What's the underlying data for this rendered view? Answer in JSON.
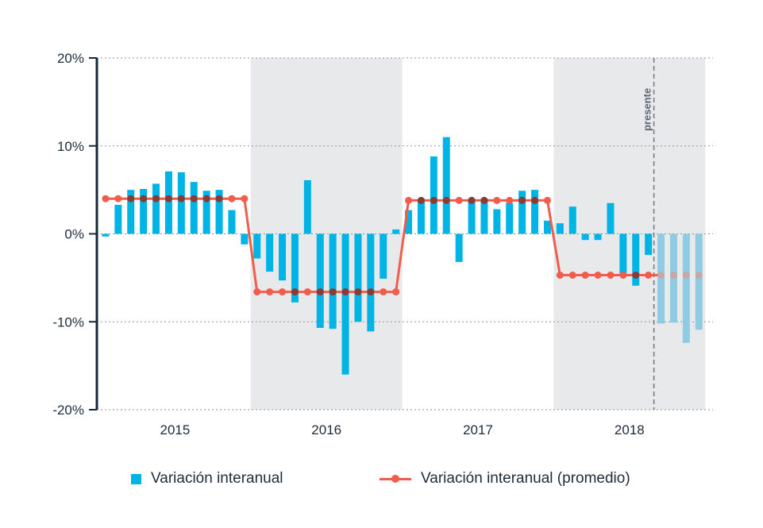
{
  "chart_data": {
    "type": "bar",
    "title": "",
    "xlabel": "",
    "ylabel": "",
    "ylim": [
      -20,
      20
    ],
    "yticks": [
      20,
      10,
      0,
      -10,
      -20
    ],
    "ytick_labels": [
      "20%",
      "10%",
      "0%",
      "-10%",
      "-20%"
    ],
    "grid": true,
    "years": [
      "2015",
      "2016",
      "2017",
      "2018"
    ],
    "shaded_years": [
      "2016",
      "2018"
    ],
    "presente_label": "presente",
    "presente_after_month": 44,
    "series": [
      {
        "name": "Variación interanual",
        "kind": "bar",
        "color": "#00b4e6",
        "projected_color": "#8fcbe3",
        "values": [
          -0.3,
          3.3,
          5.0,
          5.1,
          5.7,
          7.1,
          7.0,
          5.9,
          4.9,
          5.0,
          2.7,
          -1.2,
          -2.8,
          -4.3,
          -5.3,
          -7.8,
          6.1,
          -10.7,
          -10.8,
          -16.0,
          -10.0,
          -11.1,
          -5.1,
          0.5,
          2.7,
          4.0,
          8.8,
          11.0,
          -3.2,
          4.0,
          4.0,
          2.8,
          3.5,
          4.9,
          5.0,
          1.5,
          1.2,
          3.1,
          -0.7,
          -0.7,
          3.5,
          -4.5,
          -5.9,
          -2.4,
          -10.2,
          -10.1,
          -12.4,
          -10.9
        ]
      },
      {
        "name": "Variación interanual (promedio)",
        "kind": "line",
        "color": "#f25c4c",
        "values": [
          4.0,
          4.0,
          4.0,
          4.0,
          4.0,
          4.0,
          4.0,
          4.0,
          4.0,
          4.0,
          4.0,
          4.0,
          -6.6,
          -6.6,
          -6.6,
          -6.6,
          -6.6,
          -6.6,
          -6.6,
          -6.6,
          -6.6,
          -6.6,
          -6.6,
          -6.6,
          3.8,
          3.8,
          3.8,
          3.8,
          3.8,
          3.8,
          3.8,
          3.8,
          3.8,
          3.8,
          3.8,
          3.8,
          -4.7,
          -4.7,
          -4.7,
          -4.7,
          -4.7,
          -4.7,
          -4.7,
          -4.7,
          -4.7,
          -4.7,
          -4.7,
          -4.7
        ]
      }
    ]
  },
  "legend": {
    "bar_label": "Variación interanual",
    "line_label": "Variación interanual (promedio)"
  }
}
